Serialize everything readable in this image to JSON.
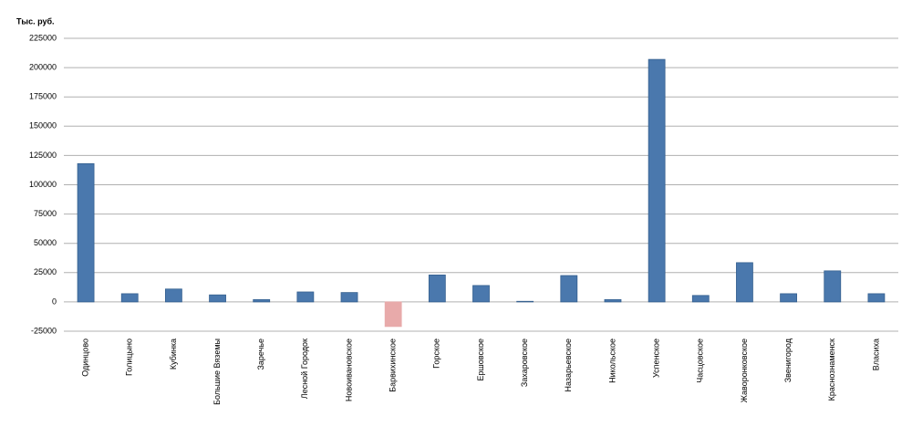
{
  "chart_data": {
    "type": "bar",
    "y_label": "Тыс. руб.",
    "categories": [
      "Одинцово",
      "Голицыно",
      "Кубинка",
      "Большие Вяземы",
      "Заречье",
      "Лесной Городок",
      "Новоивановское",
      "Барвихинское",
      "Горское",
      "Ершовское",
      "Захаровское",
      "Назарьевское",
      "Никольское",
      "Успенское",
      "Часцовское",
      "Жаворонковское",
      "Звенигород",
      "Краснознаменск",
      "Власиха"
    ],
    "values": [
      118000,
      7000,
      11000,
      6000,
      2000,
      8500,
      8000,
      -21000,
      23000,
      14000,
      500,
      22500,
      2000,
      207000,
      5500,
      33500,
      7000,
      26500,
      7000
    ],
    "color": "#4a78ad",
    "negative_color": "#e8aaaa",
    "ylim": [
      -25000,
      225000
    ],
    "yticks": [
      -25000,
      0,
      25000,
      50000,
      75000,
      100000,
      125000,
      150000,
      175000,
      200000,
      225000
    ],
    "grid": true
  }
}
